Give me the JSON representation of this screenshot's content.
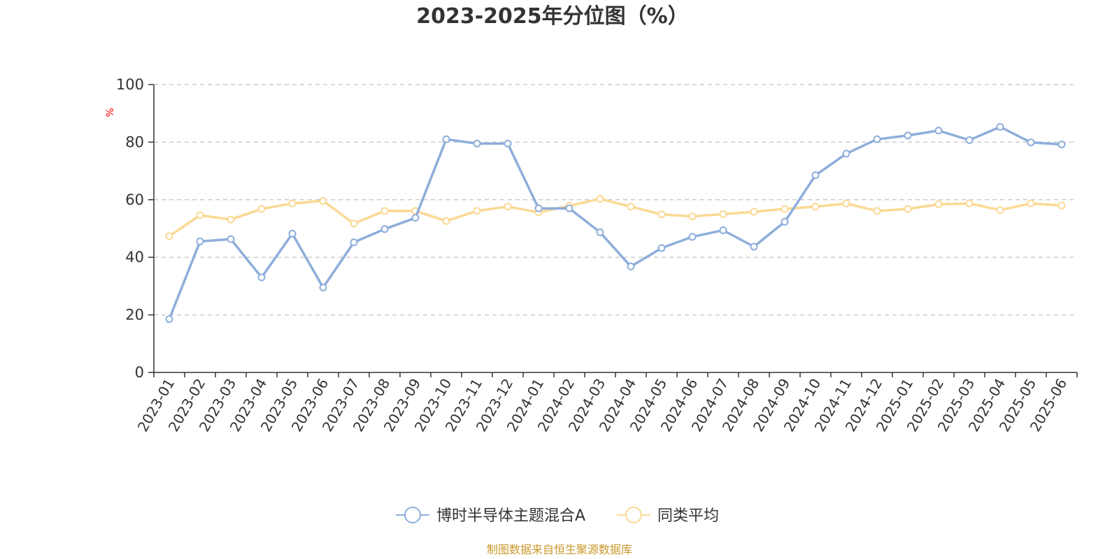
{
  "chart_data": {
    "type": "line",
    "title": "2023-2025年分位图（%）",
    "ylabel": "%",
    "ylim": [
      0,
      100
    ],
    "yticks": [
      0,
      20,
      40,
      60,
      80,
      100
    ],
    "grid": "horizontal dashed",
    "legend_position": "bottom-center",
    "categories": [
      "2023-01",
      "2023-02",
      "2023-03",
      "2023-04",
      "2023-05",
      "2023-06",
      "2023-07",
      "2023-08",
      "2023-09",
      "2023-10",
      "2023-11",
      "2023-12",
      "2024-01",
      "2024-02",
      "2024-03",
      "2024-04",
      "2024-05",
      "2024-06",
      "2024-07",
      "2024-08",
      "2024-09",
      "2024-10",
      "2024-11",
      "2024-12",
      "2025-01",
      "2025-02",
      "2025-03",
      "2025-04",
      "2025-05",
      "2025-06"
    ],
    "series": [
      {
        "name": "博时半导体主题混合A",
        "color": "#8eaedb",
        "values": [
          18.5,
          45.5,
          46.3,
          33,
          48.2,
          29.5,
          45.2,
          49.8,
          53.7,
          81,
          79.5,
          79.5,
          57,
          57,
          48.7,
          36.8,
          43.2,
          47.1,
          49.4,
          43.7,
          52.3,
          68.5,
          76,
          81,
          82.3,
          84,
          80.7,
          85.3,
          79.9,
          79.2
        ]
      },
      {
        "name": "同类平均",
        "color": "#fbd994",
        "values": [
          47.3,
          54.6,
          53.1,
          56.8,
          58.7,
          59.6,
          51.7,
          56.1,
          56.1,
          52.6,
          56.1,
          57.6,
          55.6,
          57.9,
          60.3,
          57.6,
          54.9,
          54.2,
          55,
          55.8,
          56.8,
          57.6,
          58.7,
          56.1,
          56.8,
          58.4,
          58.7,
          56.4,
          58.7,
          58
        ]
      }
    ]
  },
  "footer": {
    "source": "制图数据来自恒生聚源数据库"
  }
}
